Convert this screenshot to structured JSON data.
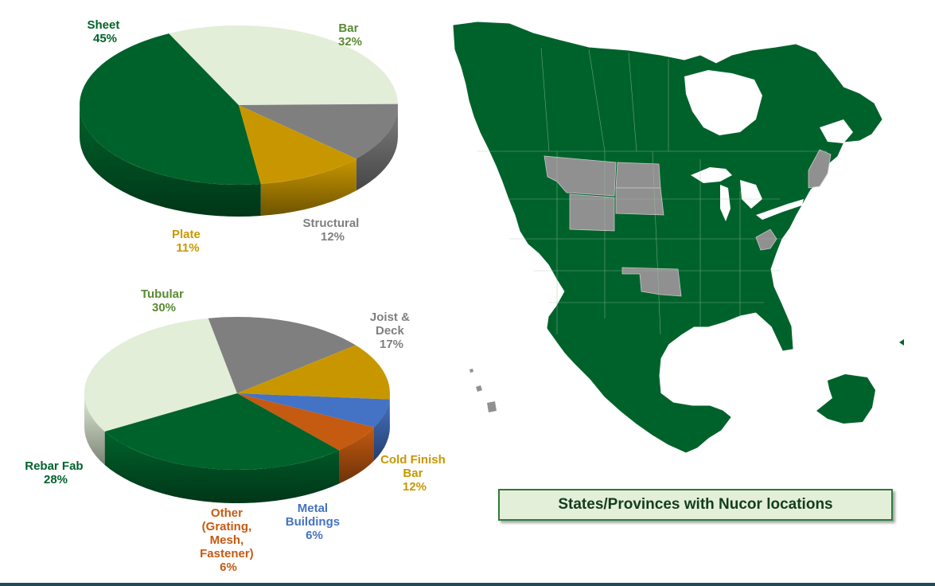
{
  "colors": {
    "sheet": "#00622b",
    "bar": "#e2eed8",
    "structural": "#7f7f7f",
    "plate": "#c89700",
    "tubular": "#e2eed8",
    "joist": "#7f7f7f",
    "cold_finish": "#c89700",
    "metal_buildings": "#4472c4",
    "other": "#c55a11",
    "rebar": "#00622b",
    "map_land": "#00622b",
    "map_gray": "#909090"
  },
  "chart_data": [
    {
      "type": "pie",
      "categories": [
        "Sheet",
        "Bar",
        "Structural",
        "Plate"
      ],
      "values": [
        45,
        32,
        12,
        11
      ],
      "labels": [
        [
          "Sheet",
          "45%"
        ],
        [
          "Bar",
          "32%"
        ],
        [
          "Structural",
          "12%"
        ],
        [
          "Plate",
          "11%"
        ]
      ]
    },
    {
      "type": "pie",
      "categories": [
        "Tubular",
        "Joist & Deck",
        "Cold Finish Bar",
        "Metal Buildings",
        "Other (Grating, Mesh, Fastener)",
        "Rebar Fab"
      ],
      "values": [
        30,
        17,
        12,
        6,
        6,
        28
      ],
      "labels": [
        [
          "Tubular",
          "30%"
        ],
        [
          "Joist &",
          "Deck",
          "17%"
        ],
        [
          "Cold Finish",
          "Bar",
          "12%"
        ],
        [
          "Metal",
          "Buildings",
          "6%"
        ],
        [
          "Other",
          "(Grating,",
          "Mesh,",
          "Fastener)",
          "6%"
        ],
        [
          "Rebar Fab",
          "28%"
        ]
      ]
    }
  ],
  "map": {
    "caption": "States/Provinces with Nucor locations"
  }
}
